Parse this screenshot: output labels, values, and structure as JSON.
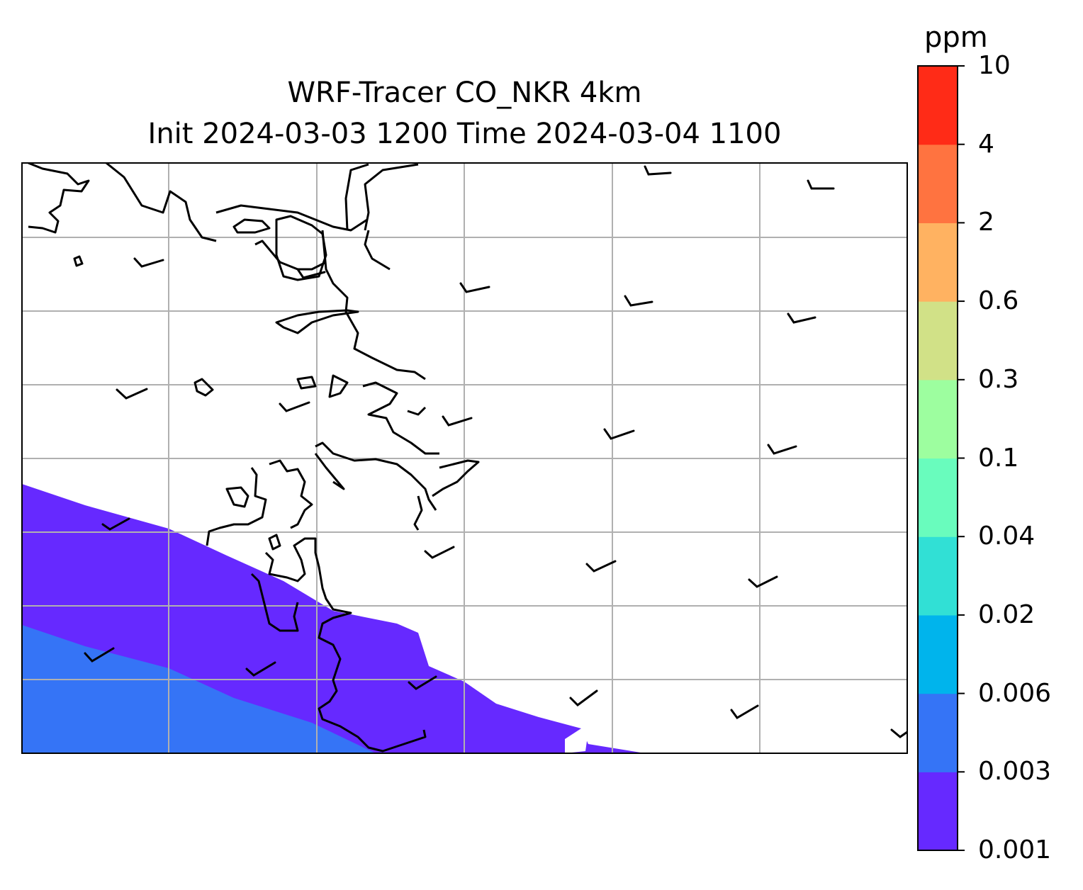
{
  "title": {
    "line1": "WRF-Tracer CO_NKR 4km",
    "line2": "Init 2024-03-03 1200 Time 2024-03-04 1100"
  },
  "colorbar": {
    "unit": "ppm",
    "levels": [
      "0.001",
      "0.003",
      "0.006",
      "0.02",
      "0.04",
      "0.1",
      "0.3",
      "0.6",
      "2",
      "4",
      "10"
    ],
    "colors": [
      "#6629ff",
      "#3574f6",
      "#00b4ec",
      "#31e0d5",
      "#69fcbd",
      "#9dfe9f",
      "#d1e187",
      "#ffb261",
      "#ff7340",
      "#ff2b17"
    ]
  },
  "map": {
    "gridlines": true,
    "coastline_color": "#000000",
    "gridline_color": "#b0b0b0",
    "concentration_bands": [
      {
        "range": "0.001–0.003 ppm",
        "color": "#6629ff"
      },
      {
        "range": "0.003–0.006 ppm",
        "color": "#3574f6"
      }
    ],
    "wind_barbs": "present"
  }
}
